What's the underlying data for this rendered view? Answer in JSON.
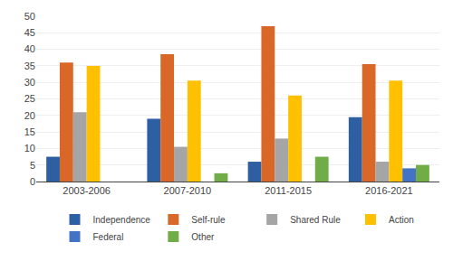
{
  "chart_data": {
    "type": "bar",
    "categories": [
      "2003-2006",
      "2007-2010",
      "2011-2015",
      "2016-2021"
    ],
    "series": [
      {
        "name": "Independence",
        "color": "#2E5FA3",
        "values": [
          7.5,
          19,
          6,
          19.5
        ]
      },
      {
        "name": "Self-rule",
        "color": "#D96828",
        "values": [
          36,
          38.5,
          47,
          35.5
        ]
      },
      {
        "name": "Shared Rule",
        "color": "#A5A5A5",
        "values": [
          21,
          10.5,
          13,
          6
        ]
      },
      {
        "name": "Action",
        "color": "#FFC000",
        "values": [
          35,
          30.5,
          26,
          30.5
        ]
      },
      {
        "name": "Federal",
        "color": "#4472C4",
        "values": [
          0,
          0,
          0,
          4
        ]
      },
      {
        "name": "Other",
        "color": "#70AD47",
        "values": [
          0,
          2.5,
          7.5,
          5
        ]
      }
    ],
    "ylim": [
      0,
      50
    ],
    "yticks": [
      0,
      5,
      10,
      15,
      20,
      25,
      30,
      35,
      40,
      45,
      50
    ],
    "grid": true,
    "legend": "bottom"
  }
}
